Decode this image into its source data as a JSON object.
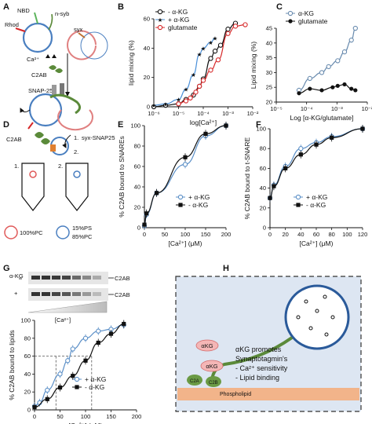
{
  "panels": {
    "A": {
      "letter": "A",
      "labels": {
        "nbd": "NBD",
        "rhod": "Rhod",
        "nsyb": "n-syb",
        "syx": "syx",
        "ca": "Ca²⁺",
        "c2ab": "C2AB",
        "snap25": "SNAP-25"
      }
    },
    "D": {
      "letter": "D",
      "labels": {
        "c2ab": "C2AB",
        "syx_snap25": "syx-SNAP25",
        "step1": "1.",
        "step2": "2.",
        "step1b": "1.",
        "step2b": "2.",
        "pc100": "100%PC",
        "ps15": "15%PS",
        "pc85": "85%PC"
      }
    },
    "G": {
      "letter": "G",
      "gel": {
        "row1_label": "α-KG",
        "row2_label": "+",
        "band_label": "C2AB",
        "ca_label": "[Ca²⁺]"
      }
    },
    "H": {
      "letter": "H",
      "akg1": "αKG",
      "akg2": "αKG",
      "text_lines": [
        "αKG promotes",
        "Synaptotagmin's",
        "- Ca²⁺ sensitivity",
        "- Lipid binding"
      ],
      "c2a": "C2A",
      "c2b": "C2B",
      "phospholipid": "Phospholipid"
    }
  },
  "chart_data": [
    {
      "id": "B",
      "type": "line",
      "panel_letter": "B",
      "xlabel": "log[Ca²⁺]",
      "ylabel": "lipid mixing (%)",
      "x_scale": "log",
      "xlim": [
        1e-06,
        0.01
      ],
      "ylim": [
        0,
        60
      ],
      "xticks": [
        "10⁻⁶",
        "10⁻⁵",
        "10⁻⁴",
        "10⁻³",
        "10⁻²"
      ],
      "yticks": [
        "0",
        "20",
        "40",
        "60"
      ],
      "legend_position": "top-left",
      "series": [
        {
          "name": "- α-KG",
          "color": "#111111",
          "marker": "open-circle",
          "x": [
            1e-06,
            3e-06,
            1e-05,
            2e-05,
            4e-05,
            7e-05,
            0.0001,
            0.0002,
            0.0003,
            0.0005,
            0.001,
            0.002
          ],
          "y": [
            0,
            1,
            2,
            5,
            8,
            14,
            19,
            33,
            38,
            42,
            53,
            57
          ]
        },
        {
          "name": "+ α-KG",
          "color": "#4a90d9",
          "marker": "star",
          "x": [
            1e-06,
            3e-06,
            1e-05,
            2e-05,
            4e-05,
            7e-05,
            0.0001,
            0.0002,
            0.0003
          ],
          "y": [
            1,
            2,
            5,
            12,
            22,
            36,
            40,
            44,
            47
          ]
        },
        {
          "name": "glutamate",
          "color": "#d62728",
          "marker": "open-circle",
          "x": [
            1e-05,
            2e-05,
            3e-05,
            5e-05,
            7e-05,
            0.0001,
            0.0002,
            0.0004,
            0.001,
            0.002,
            0.005
          ],
          "y": [
            2,
            4,
            6,
            10,
            14,
            18,
            25,
            32,
            50,
            55,
            56
          ]
        }
      ]
    },
    {
      "id": "C",
      "type": "line",
      "panel_letter": "C",
      "xlabel": "Log [α-KG/glutamate]",
      "ylabel": "Lipid mixing (%)",
      "x_scale": "log",
      "xlim": [
        1e-05,
        0.1
      ],
      "ylim": [
        20,
        45
      ],
      "xticks": [
        "10⁻⁵",
        "10⁻⁴",
        "10⁻³",
        "10⁻²"
      ],
      "yticks": [
        "20",
        "25",
        "30",
        "35",
        "40",
        "45"
      ],
      "legend_position": "top-left",
      "series": [
        {
          "name": "α-KG",
          "color": "#6a8caf",
          "marker": "open-circle",
          "x": [
            0.0001,
            0.0003,
            0.001,
            0.002,
            0.005,
            0.01,
            0.02,
            0.03
          ],
          "y": [
            24,
            28,
            30,
            32,
            34,
            37,
            41,
            45
          ]
        },
        {
          "name": "glutamate",
          "color": "#111111",
          "marker": "filled-circle",
          "x": [
            0.0001,
            0.0003,
            0.001,
            0.003,
            0.005,
            0.01,
            0.02,
            0.03
          ],
          "y": [
            23,
            24.5,
            24,
            25,
            25.5,
            26,
            24.5,
            24
          ]
        }
      ]
    },
    {
      "id": "E",
      "type": "line",
      "panel_letter": "E",
      "xlabel": "[Ca²⁺] (μM)",
      "ylabel": "% C2AB bound to SNAREs",
      "xlim": [
        0,
        200
      ],
      "ylim": [
        0,
        100
      ],
      "xticks": [
        "0",
        "50",
        "100",
        "150",
        "200"
      ],
      "yticks": [
        "0",
        "20",
        "40",
        "60",
        "80",
        "100"
      ],
      "legend_position": "bottom-right",
      "series": [
        {
          "name": "+ α-KG",
          "color": "#5b8fc7",
          "marker": "open-circle",
          "x": [
            0,
            5,
            30,
            100,
            150,
            200
          ],
          "y": [
            2,
            13,
            34,
            62,
            90,
            100
          ]
        },
        {
          "name": "- α-KG",
          "color": "#111111",
          "marker": "filled-square",
          "x": [
            0,
            5,
            30,
            100,
            150,
            200
          ],
          "y": [
            3,
            14,
            34,
            69,
            92,
            100
          ]
        }
      ]
    },
    {
      "id": "F",
      "type": "line",
      "panel_letter": "F",
      "xlabel": "[Ca²⁺] (μM)",
      "ylabel": "% C2AB bound to t-SNARE",
      "xlim": [
        0,
        120
      ],
      "ylim": [
        0,
        100
      ],
      "xticks": [
        "0",
        "20",
        "40",
        "60",
        "80",
        "100",
        "120"
      ],
      "yticks": [
        "0",
        "20",
        "40",
        "60",
        "80",
        "100"
      ],
      "legend_position": "bottom-right",
      "series": [
        {
          "name": "+ α-KG",
          "color": "#5b8fc7",
          "marker": "open-circle",
          "x": [
            0,
            5,
            20,
            40,
            60,
            80,
            120
          ],
          "y": [
            30,
            43,
            62,
            80,
            86,
            92,
            100
          ]
        },
        {
          "name": "- α-KG",
          "color": "#111111",
          "marker": "filled-square",
          "x": [
            0,
            5,
            20,
            40,
            60,
            80,
            120
          ],
          "y": [
            30,
            42,
            60,
            74,
            84,
            91,
            100
          ]
        }
      ]
    },
    {
      "id": "G",
      "type": "line",
      "panel_letter": "",
      "xlabel": "[Ca²⁺] (μM)",
      "ylabel": "% C2AB bound to lipids",
      "xlim": [
        0,
        200
      ],
      "ylim": [
        0,
        100
      ],
      "xticks": [
        "0",
        "50",
        "100",
        "150",
        "200"
      ],
      "yticks": [
        "0",
        "20",
        "40",
        "60",
        "80",
        "100"
      ],
      "legend_position": "bottom-right",
      "reference_lines": {
        "y": 60,
        "x_plus": 42,
        "x_minus": 112
      },
      "series": [
        {
          "name": "+ α-KG",
          "color": "#5b8fc7",
          "marker": "open-circle",
          "x": [
            0,
            10,
            25,
            50,
            65,
            75,
            100,
            125,
            150,
            175
          ],
          "y": [
            4,
            8,
            22,
            40,
            55,
            68,
            80,
            88,
            90,
            95
          ]
        },
        {
          "name": "- α-KG",
          "color": "#111111",
          "marker": "filled-square",
          "x": [
            0,
            25,
            50,
            75,
            100,
            125,
            150,
            175
          ],
          "y": [
            3,
            12,
            25,
            38,
            55,
            75,
            85,
            96
          ]
        }
      ]
    }
  ]
}
